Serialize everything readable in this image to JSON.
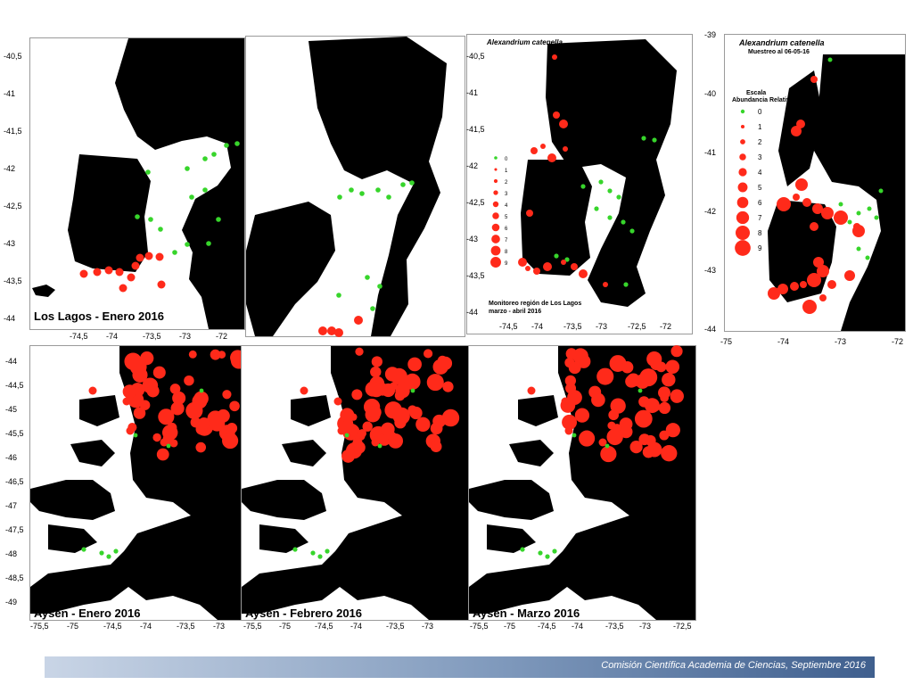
{
  "panels": {
    "lagos_enero": {
      "caption": "Los Lagos - Enero 2016",
      "y_ticks": [
        "-40,5",
        "-41",
        "-41,5",
        "-42",
        "-42,5",
        "-43",
        "-43,5",
        "-44"
      ],
      "x_ticks": [
        "-74,5",
        "-74",
        "-73,5",
        "-73",
        "-72"
      ]
    },
    "lagos_feb": {
      "caption": ""
    },
    "lagos_mar": {
      "title": "Alexandrium catenella",
      "y_ticks": [
        "-40,5",
        "-41",
        "-41,5",
        "-42",
        "-42,5",
        "-43",
        "-43,5",
        "-44"
      ],
      "x_ticks": [
        "-74,5",
        "-74",
        "-73,5",
        "-73",
        "-72,5",
        "-72"
      ],
      "legend_values": [
        "0",
        "1",
        "2",
        "3",
        "4",
        "5",
        "6",
        "7",
        "8",
        "9"
      ],
      "note_line1": "Monitoreo región de Los Lagos",
      "note_line2": "marzo - abril 2016"
    },
    "lagos_may": {
      "title": "Alexandrium catenella",
      "subtitle": "Muestreo al 06-05-16",
      "legend_title1": "Escala",
      "legend_title2": "Abundancia Relativa",
      "legend_values": [
        "0",
        "1",
        "2",
        "3",
        "4",
        "5",
        "6",
        "7",
        "8",
        "9"
      ],
      "y_ticks": [
        "-39",
        "-40",
        "-41",
        "-42",
        "-43",
        "-44"
      ],
      "x_ticks": [
        "-75",
        "-74",
        "-73",
        "-72"
      ]
    },
    "aysen_enero": {
      "caption": "Aysén - Enero 2016",
      "y_ticks": [
        "-44",
        "-44,5",
        "-45",
        "-45,5",
        "-46",
        "-46,5",
        "-47",
        "-47,5",
        "-48",
        "-48,5",
        "-49"
      ],
      "x_ticks": [
        "-75,5",
        "-75",
        "-74,5",
        "-74",
        "-73,5",
        "-73"
      ]
    },
    "aysen_feb": {
      "caption": "Aysén - Febrero 2016",
      "x_ticks": [
        "-75,5",
        "-75",
        "-74,5",
        "-74",
        "-73,5",
        "-73"
      ]
    },
    "aysen_mar": {
      "caption": "Aysén - Marzo 2016",
      "x_ticks": [
        "-75,5",
        "-75",
        "-74,5",
        "-74",
        "-73,5",
        "-73",
        "-72,5"
      ]
    }
  },
  "colors": {
    "land": "#000000",
    "positive": "#ff2a1a",
    "negative": "#37d52b",
    "ink": "#000000"
  },
  "footer": {
    "text": "Comisión Científica Academia de Ciencias, Septiembre 2016"
  }
}
